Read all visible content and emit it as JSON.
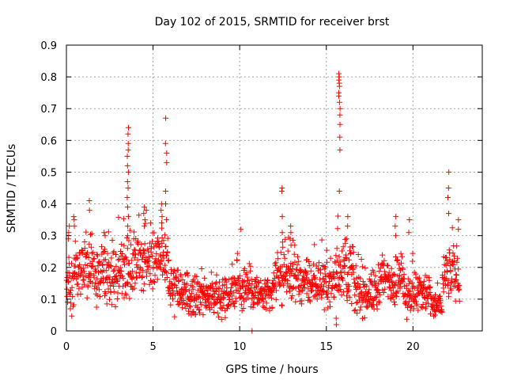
{
  "chart_data": {
    "type": "scatter",
    "title": "Day 102 of 2015, SRMTID for receiver brst",
    "xlabel": "GPS time / hours",
    "ylabel": "SRMTID / TECUs",
    "xlim": [
      0,
      24
    ],
    "ylim": [
      0,
      0.9
    ],
    "xticks": [
      0,
      5,
      10,
      15,
      20
    ],
    "yticks": [
      0,
      0.1,
      0.2,
      0.3,
      0.4,
      0.5,
      0.6,
      0.7,
      0.8,
      0.9
    ],
    "xtick_labels": [
      "0",
      "5",
      "10",
      "15",
      "20"
    ],
    "ytick_labels": [
      "0",
      "0.1",
      "0.2",
      "0.3",
      "0.4",
      "0.5",
      "0.6",
      "0.7",
      "0.8",
      "0.9"
    ],
    "grid": true,
    "marker": "+",
    "marker_color": "#ff0000",
    "baseline_segments": [
      {
        "x0": 0.0,
        "x1": 0.5,
        "base": 0.15,
        "spread": 0.09
      },
      {
        "x0": 0.5,
        "x1": 1.6,
        "base": 0.21,
        "spread": 0.1
      },
      {
        "x0": 1.6,
        "x1": 3.0,
        "base": 0.17,
        "spread": 0.1
      },
      {
        "x0": 3.0,
        "x1": 3.8,
        "base": 0.2,
        "spread": 0.11
      },
      {
        "x0": 3.8,
        "x1": 4.8,
        "base": 0.22,
        "spread": 0.11
      },
      {
        "x0": 4.8,
        "x1": 5.9,
        "base": 0.23,
        "spread": 0.11
      },
      {
        "x0": 5.9,
        "x1": 6.5,
        "base": 0.14,
        "spread": 0.08
      },
      {
        "x0": 6.5,
        "x1": 9.5,
        "base": 0.11,
        "spread": 0.07
      },
      {
        "x0": 9.5,
        "x1": 11.0,
        "base": 0.14,
        "spread": 0.08
      },
      {
        "x0": 11.0,
        "x1": 12.0,
        "base": 0.11,
        "spread": 0.07
      },
      {
        "x0": 12.0,
        "x1": 13.5,
        "base": 0.17,
        "spread": 0.09
      },
      {
        "x0": 13.5,
        "x1": 15.5,
        "base": 0.15,
        "spread": 0.08
      },
      {
        "x0": 15.5,
        "x1": 16.6,
        "base": 0.19,
        "spread": 0.11
      },
      {
        "x0": 16.6,
        "x1": 18.0,
        "base": 0.12,
        "spread": 0.08
      },
      {
        "x0": 18.0,
        "x1": 19.5,
        "base": 0.16,
        "spread": 0.09
      },
      {
        "x0": 19.5,
        "x1": 21.0,
        "base": 0.12,
        "spread": 0.08
      },
      {
        "x0": 21.0,
        "x1": 21.7,
        "base": 0.08,
        "spread": 0.05
      },
      {
        "x0": 21.7,
        "x1": 22.7,
        "base": 0.18,
        "spread": 0.09
      }
    ],
    "peaks": [
      {
        "x": 0.15,
        "y": [
          0.29,
          0.31,
          0.33
        ]
      },
      {
        "x": 0.45,
        "y": [
          0.33,
          0.35,
          0.36
        ]
      },
      {
        "x": 1.3,
        "y": [
          0.38,
          0.41
        ]
      },
      {
        "x": 2.2,
        "y": [
          0.3,
          0.31
        ]
      },
      {
        "x": 3.55,
        "y": [
          0.3,
          0.33,
          0.36,
          0.39,
          0.42,
          0.45,
          0.47,
          0.5,
          0.52,
          0.55,
          0.57,
          0.59,
          0.62,
          0.64
        ]
      },
      {
        "x": 4.5,
        "y": [
          0.33,
          0.35,
          0.37,
          0.39
        ]
      },
      {
        "x": 5.5,
        "y": [
          0.34,
          0.36,
          0.38,
          0.4
        ]
      },
      {
        "x": 5.75,
        "y": [
          0.35,
          0.4,
          0.44,
          0.53,
          0.56,
          0.59,
          0.67
        ]
      },
      {
        "x": 12.45,
        "y": [
          0.28,
          0.31,
          0.36,
          0.44,
          0.45
        ]
      },
      {
        "x": 12.95,
        "y": [
          0.27,
          0.29,
          0.31,
          0.33
        ]
      },
      {
        "x": 15.75,
        "y": [
          0.44,
          0.57,
          0.61,
          0.65,
          0.68,
          0.7,
          0.72,
          0.74,
          0.75,
          0.77,
          0.78,
          0.79,
          0.8,
          0.81
        ]
      },
      {
        "x": 15.6,
        "y": [
          0.02,
          0.04,
          0.26
        ]
      },
      {
        "x": 16.2,
        "y": [
          0.29,
          0.33,
          0.36
        ]
      },
      {
        "x": 19.0,
        "y": [
          0.3,
          0.33,
          0.36
        ]
      },
      {
        "x": 19.8,
        "y": [
          0.31,
          0.35
        ]
      },
      {
        "x": 22.05,
        "y": [
          0.37,
          0.42,
          0.45,
          0.5
        ]
      },
      {
        "x": 22.6,
        "y": [
          0.32,
          0.35
        ]
      },
      {
        "x": 10.7,
        "y": [
          0.0
        ]
      }
    ],
    "series": [
      {
        "name": "SRMTID",
        "samples": 1500,
        "x_range": [
          0.0,
          22.7
        ]
      }
    ]
  }
}
